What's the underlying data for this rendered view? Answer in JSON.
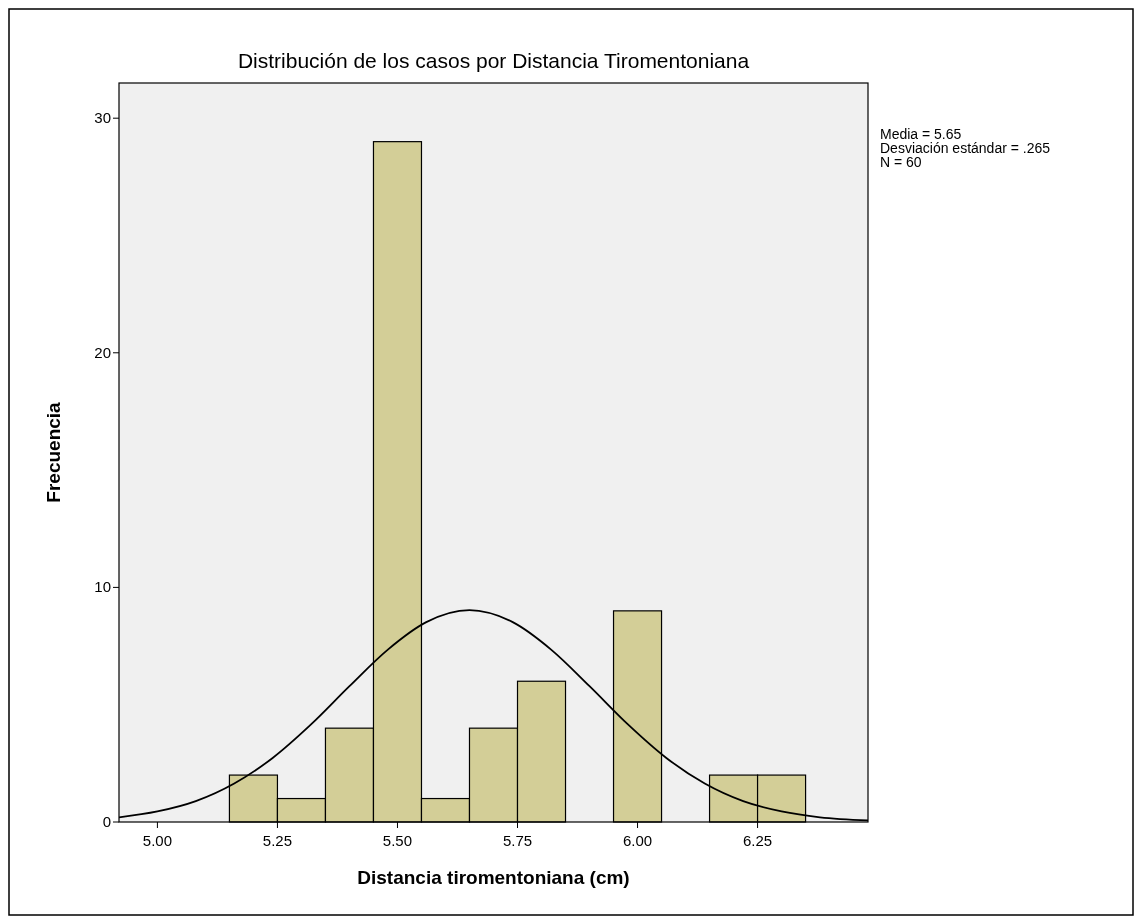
{
  "chart_data": {
    "type": "histogram",
    "title": "Distribución de los casos por Distancia Tiromentoniana",
    "xlabel": "Distancia tiromentoniana (cm)",
    "ylabel": "Frecuencia",
    "bins": [
      5.15,
      5.25,
      5.35,
      5.45,
      5.55,
      5.65,
      5.75,
      5.85,
      5.95,
      6.05,
      6.15,
      6.25,
      6.35
    ],
    "values": [
      2,
      1,
      4,
      29,
      1,
      4,
      6,
      0,
      9,
      0,
      2,
      2
    ],
    "color": "#d3ce97",
    "series": [
      {
        "type": "line",
        "color": "#000000",
        "x": [
          4.92,
          5.0,
          5.08,
          5.16,
          5.24,
          5.32,
          5.4,
          5.48,
          5.56,
          5.65,
          5.74,
          5.82,
          5.9,
          5.98,
          6.06,
          6.14,
          6.22,
          6.3,
          6.38,
          6.48
        ],
        "values": [
          0.2,
          0.45,
          0.89,
          1.64,
          2.73,
          4.16,
          5.79,
          7.35,
          8.52,
          9.03,
          8.52,
          7.35,
          5.79,
          4.16,
          2.73,
          1.64,
          0.89,
          0.45,
          0.2,
          0.07
        ]
      }
    ],
    "xlim": [
      4.92,
      6.48
    ],
    "xticks": [
      {
        "value": 5,
        "label": "5.00"
      },
      {
        "value": 5.25,
        "label": "5.25"
      },
      {
        "value": 5.5,
        "label": "5.50"
      },
      {
        "value": 5.75,
        "label": "5.75"
      },
      {
        "value": 6,
        "label": "6.00"
      },
      {
        "value": 6.25,
        "label": "6.25"
      }
    ],
    "ylim": [
      0,
      31.5
    ],
    "yticks": [
      0,
      10,
      20,
      30
    ],
    "grid": false,
    "annotations": [
      "Media = 5.65",
      "Desviación estándar = .265",
      "N = 60"
    ]
  }
}
